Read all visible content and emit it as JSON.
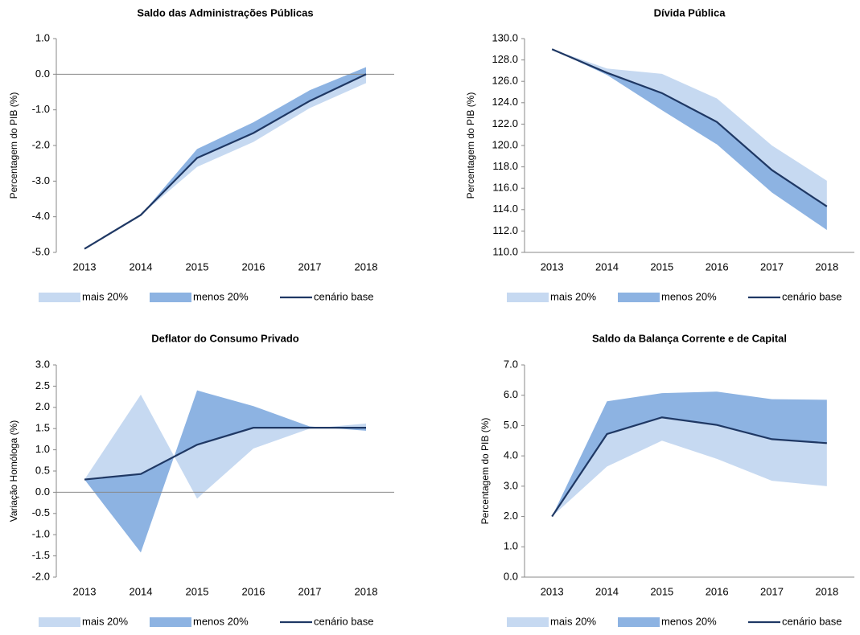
{
  "chart_data": [
    {
      "type": "area-band",
      "title": "Saldo das Administrações Públicas",
      "ylabel": "Percentagem do PIB (%)",
      "categories": [
        "2013",
        "2014",
        "2015",
        "2016",
        "2017",
        "2018"
      ],
      "ylim": [
        -5,
        1
      ],
      "yticks": [
        {
          "value": -5,
          "label": "-5.0"
        },
        {
          "value": -4,
          "label": "-4.0"
        },
        {
          "value": -3,
          "label": "-3.0"
        },
        {
          "value": -2,
          "label": "-2.0"
        },
        {
          "value": -1,
          "label": "-1.0"
        },
        {
          "value": 0,
          "label": "0.0"
        },
        {
          "value": 1,
          "label": "1.0"
        }
      ],
      "series": [
        {
          "name": "mais 20%",
          "color": "#c6d9f1",
          "values": [
            -4.9,
            -3.95,
            -2.6,
            -1.9,
            -0.95,
            -0.25
          ]
        },
        {
          "name": "menos 20%",
          "color": "#8db3e2",
          "values": [
            -4.9,
            -3.95,
            -2.1,
            -1.35,
            -0.45,
            0.2
          ]
        },
        {
          "name": "cenário base",
          "color": "#1f3864",
          "values": [
            -4.9,
            -3.95,
            -2.35,
            -1.65,
            -0.75,
            0.0
          ]
        }
      ]
    },
    {
      "type": "area-band",
      "title": "Dívida Pública",
      "ylabel": "Percentagem do PIB (%)",
      "categories": [
        "2013",
        "2014",
        "2015",
        "2016",
        "2017",
        "2018"
      ],
      "ylim": [
        110,
        130
      ],
      "yticks": [
        {
          "value": 110,
          "label": "110.0"
        },
        {
          "value": 112,
          "label": "112.0"
        },
        {
          "value": 114,
          "label": "114.0"
        },
        {
          "value": 116,
          "label": "116.0"
        },
        {
          "value": 118,
          "label": "118.0"
        },
        {
          "value": 120,
          "label": "120.0"
        },
        {
          "value": 122,
          "label": "122.0"
        },
        {
          "value": 124,
          "label": "124.0"
        },
        {
          "value": 126,
          "label": "126.0"
        },
        {
          "value": 128,
          "label": "128.0"
        },
        {
          "value": 130,
          "label": "130.0"
        }
      ],
      "series": [
        {
          "name": "mais 20%",
          "color": "#c6d9f1",
          "values": [
            129.0,
            127.2,
            126.7,
            124.4,
            120.0,
            116.7
          ]
        },
        {
          "name": "menos 20%",
          "color": "#8db3e2",
          "values": [
            129.0,
            126.6,
            123.3,
            120.1,
            115.6,
            112.1
          ]
        },
        {
          "name": "cenário base",
          "color": "#1f3864",
          "values": [
            129.0,
            126.8,
            124.9,
            122.2,
            117.7,
            114.3
          ]
        }
      ]
    },
    {
      "type": "area-band",
      "title": "Deflator do Consumo Privado",
      "ylabel": "Variação Homóloga (%)",
      "categories": [
        "2013",
        "2014",
        "2015",
        "2016",
        "2017",
        "2018"
      ],
      "ylim": [
        -2,
        3
      ],
      "yticks": [
        {
          "value": -2,
          "label": "-2.0"
        },
        {
          "value": -1.5,
          "label": "-1.5"
        },
        {
          "value": -1,
          "label": "-1.0"
        },
        {
          "value": -0.5,
          "label": "-0.5"
        },
        {
          "value": 0,
          "label": "0.0"
        },
        {
          "value": 0.5,
          "label": "0.5"
        },
        {
          "value": 1,
          "label": "1.0"
        },
        {
          "value": 1.5,
          "label": "1.5"
        },
        {
          "value": 2,
          "label": "2.0"
        },
        {
          "value": 2.5,
          "label": "2.5"
        },
        {
          "value": 3,
          "label": "3.0"
        }
      ],
      "series": [
        {
          "name": "mais 20%",
          "color": "#c6d9f1",
          "values": [
            0.3,
            2.3,
            -0.15,
            1.03,
            1.5,
            1.62
          ]
        },
        {
          "name": "menos 20%",
          "color": "#8db3e2",
          "values": [
            0.3,
            -1.42,
            2.4,
            2.03,
            1.55,
            1.45
          ]
        },
        {
          "name": "cenário base",
          "color": "#1f3864",
          "values": [
            0.3,
            0.43,
            1.12,
            1.52,
            1.52,
            1.52
          ]
        }
      ]
    },
    {
      "type": "area-band",
      "title": "Saldo da Balança Corrente e de Capital",
      "ylabel": "Percentagem do PIB (%)",
      "categories": [
        "2013",
        "2014",
        "2015",
        "2016",
        "2017",
        "2018"
      ],
      "ylim": [
        0,
        7
      ],
      "yticks": [
        {
          "value": 0,
          "label": "0.0"
        },
        {
          "value": 1,
          "label": "1.0"
        },
        {
          "value": 2,
          "label": "2.0"
        },
        {
          "value": 3,
          "label": "3.0"
        },
        {
          "value": 4,
          "label": "4.0"
        },
        {
          "value": 5,
          "label": "5.0"
        },
        {
          "value": 6,
          "label": "6.0"
        },
        {
          "value": 7,
          "label": "7.0"
        }
      ],
      "series": [
        {
          "name": "mais 20%",
          "color": "#c6d9f1",
          "values": [
            2.0,
            3.65,
            4.5,
            3.9,
            3.18,
            3.0
          ]
        },
        {
          "name": "menos 20%",
          "color": "#8db3e2",
          "values": [
            2.0,
            5.8,
            6.07,
            6.12,
            5.87,
            5.85
          ]
        },
        {
          "name": "cenário base",
          "color": "#1f3864",
          "values": [
            2.0,
            4.72,
            5.27,
            5.02,
            4.55,
            4.42
          ]
        }
      ]
    }
  ]
}
